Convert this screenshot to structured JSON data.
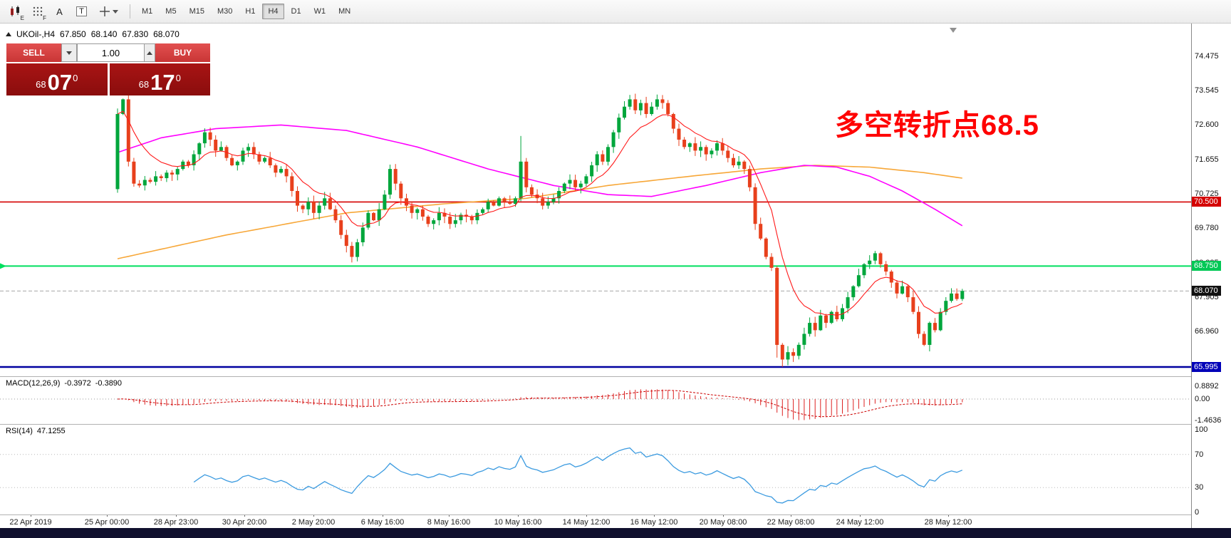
{
  "app": {
    "toolbar": {
      "icon_e": "E",
      "icon_f": "F",
      "icon_a": "A",
      "icon_t": "T"
    },
    "timeframes": [
      "M1",
      "M5",
      "M15",
      "M30",
      "H1",
      "H4",
      "D1",
      "W1",
      "MN"
    ],
    "active_timeframe": "H4"
  },
  "chart": {
    "title": {
      "symbol_period": "UKOil-,H4",
      "open": "67.850",
      "high": "68.140",
      "low": "67.830",
      "close": "68.070"
    },
    "trade_panel": {
      "sell_label": "SELL",
      "buy_label": "BUY",
      "volume": "1.00",
      "bid": {
        "small": "68",
        "big": "07",
        "sup": "0"
      },
      "ask": {
        "small": "68",
        "big": "17",
        "sup": "0"
      }
    },
    "annotation": {
      "text": "多空转折点68.5",
      "color": "#ff0000"
    },
    "price_axis": {
      "ticks": [
        74.475,
        73.545,
        72.6,
        71.655,
        70.725,
        69.78,
        68.835,
        67.905,
        66.96
      ],
      "badges": [
        {
          "label": "70.500",
          "price": 70.5,
          "bg": "#d40000",
          "fg": "#ffffff"
        },
        {
          "label": "68.750",
          "price": 68.75,
          "bg": "#00c855",
          "fg": "#ffffff"
        },
        {
          "label": "68.070",
          "price": 68.07,
          "bg": "#111111",
          "fg": "#ffffff"
        },
        {
          "label": "65.995",
          "price": 65.995,
          "bg": "#0000b8",
          "fg": "#ffffff"
        }
      ]
    },
    "levels": {
      "red": 70.5,
      "green": 68.75,
      "blue": 65.995,
      "current": 68.07
    }
  },
  "macd": {
    "label": "MACD(12,26,9)",
    "value_main": "-0.3972",
    "value_signal": "-0.3890",
    "fast": 12,
    "slow": 26,
    "signal": 9,
    "axis": [
      {
        "label": "0.8892",
        "v": 0.8892
      },
      {
        "label": "0.00",
        "v": 0
      },
      {
        "label": "-1.4636",
        "v": -1.4636
      }
    ]
  },
  "rsi": {
    "label": "RSI(14)",
    "value": "47.1255",
    "period": 14,
    "levels": [
      70,
      30
    ],
    "axis": [
      {
        "label": "100",
        "v": 100
      },
      {
        "label": "70",
        "v": 70
      },
      {
        "label": "30",
        "v": 30
      },
      {
        "label": "0",
        "v": 0
      }
    ]
  },
  "time_axis": {
    "labels": [
      {
        "text": "22 Apr 2019",
        "f": 0.026
      },
      {
        "text": "25 Apr 00:00",
        "f": 0.09
      },
      {
        "text": "28 Apr 23:00",
        "f": 0.148
      },
      {
        "text": "30 Apr 20:00",
        "f": 0.205
      },
      {
        "text": "2 May 20:00",
        "f": 0.263
      },
      {
        "text": "6 May 16:00",
        "f": 0.321
      },
      {
        "text": "8 May 16:00",
        "f": 0.377
      },
      {
        "text": "10 May 16:00",
        "f": 0.435
      },
      {
        "text": "14 May 12:00",
        "f": 0.492
      },
      {
        "text": "16 May 12:00",
        "f": 0.549
      },
      {
        "text": "20 May 08:00",
        "f": 0.607
      },
      {
        "text": "22 May 08:00",
        "f": 0.664
      },
      {
        "text": "24 May 12:00",
        "f": 0.722
      },
      {
        "text": "28 May 12:00",
        "f": 0.796
      }
    ]
  },
  "chart_data": {
    "type": "candlestick",
    "symbol": "UKOil-",
    "period": "H4",
    "title": "UKOil-,H4",
    "y_range": [
      65.995,
      74.475
    ],
    "open_first": 70.85,
    "closes": [
      72.9,
      73.3,
      71.6,
      71.0,
      70.95,
      71.1,
      71.05,
      71.2,
      71.15,
      71.3,
      71.25,
      71.4,
      71.6,
      71.5,
      71.8,
      72.1,
      72.4,
      72.2,
      71.9,
      72.0,
      71.7,
      71.5,
      71.6,
      71.9,
      72.0,
      71.8,
      71.6,
      71.7,
      71.5,
      71.3,
      71.4,
      71.2,
      70.8,
      70.4,
      70.3,
      70.5,
      70.2,
      70.4,
      70.6,
      70.3,
      70.0,
      69.6,
      69.3,
      69.0,
      69.4,
      69.8,
      70.2,
      70.0,
      70.3,
      70.7,
      71.4,
      71.0,
      70.6,
      70.4,
      70.2,
      70.3,
      70.1,
      69.9,
      70.0,
      70.2,
      70.1,
      69.9,
      70.0,
      70.15,
      70.1,
      70.0,
      70.2,
      70.3,
      70.5,
      70.4,
      70.6,
      70.5,
      70.45,
      70.6,
      71.6,
      70.9,
      70.7,
      70.6,
      70.4,
      70.5,
      70.6,
      70.8,
      71.0,
      71.1,
      70.9,
      71.0,
      71.2,
      71.5,
      71.8,
      71.6,
      72.0,
      72.4,
      72.8,
      73.1,
      73.3,
      73.0,
      73.2,
      72.9,
      73.1,
      73.3,
      73.2,
      72.9,
      72.5,
      72.2,
      72.0,
      72.1,
      71.9,
      72.0,
      71.8,
      71.9,
      72.1,
      71.9,
      71.7,
      71.5,
      71.6,
      71.4,
      70.9,
      69.9,
      69.5,
      69.0,
      68.7,
      66.6,
      66.2,
      66.4,
      66.3,
      66.6,
      66.9,
      67.2,
      67.0,
      67.4,
      67.2,
      67.5,
      67.3,
      67.6,
      67.9,
      68.2,
      68.5,
      68.8,
      68.9,
      69.1,
      68.8,
      68.6,
      68.3,
      68.0,
      68.2,
      67.9,
      67.5,
      66.9,
      66.6,
      67.2,
      67.0,
      67.5,
      67.8,
      68.0,
      67.85,
      68.07
    ],
    "wick_overrides": {
      "0": [
        0.15,
        0.1
      ],
      "74": [
        0.7,
        0.08
      ],
      "93": [
        0.15,
        0.05
      ],
      "94": [
        0.12,
        0.08
      ],
      "121": [
        0.05,
        0.35
      ],
      "122": [
        0.05,
        0.2
      ]
    },
    "ma_magenta": [
      [
        0,
        71.85
      ],
      [
        8,
        72.25
      ],
      [
        18,
        72.5
      ],
      [
        30,
        72.6
      ],
      [
        42,
        72.45
      ],
      [
        55,
        72.0
      ],
      [
        68,
        71.4
      ],
      [
        80,
        70.95
      ],
      [
        90,
        70.7
      ],
      [
        98,
        70.65
      ],
      [
        108,
        70.95
      ],
      [
        118,
        71.3
      ],
      [
        126,
        71.5
      ],
      [
        132,
        71.45
      ],
      [
        138,
        71.2
      ],
      [
        144,
        70.8
      ],
      [
        150,
        70.3
      ],
      [
        155,
        69.85
      ]
    ],
    "ma_orange": [
      [
        0,
        68.95
      ],
      [
        20,
        69.6
      ],
      [
        42,
        70.2
      ],
      [
        60,
        70.45
      ],
      [
        75,
        70.6
      ],
      [
        90,
        70.95
      ],
      [
        105,
        71.2
      ],
      [
        118,
        71.4
      ],
      [
        128,
        71.5
      ],
      [
        138,
        71.45
      ],
      [
        148,
        71.3
      ],
      [
        155,
        71.15
      ]
    ],
    "ma_red_period": 10,
    "colors": {
      "up": "#00a63c",
      "down": "#e8401c",
      "magenta": "#ff00ff",
      "orange": "#f7a738",
      "red_ma": "#ff1a1a",
      "level_red": "#d40000",
      "level_green": "#00df5f",
      "level_blue": "#0000a0",
      "macd_hist": "#dd2222",
      "macd_signal": "#cc0000",
      "rsi": "#3c9be0"
    }
  }
}
